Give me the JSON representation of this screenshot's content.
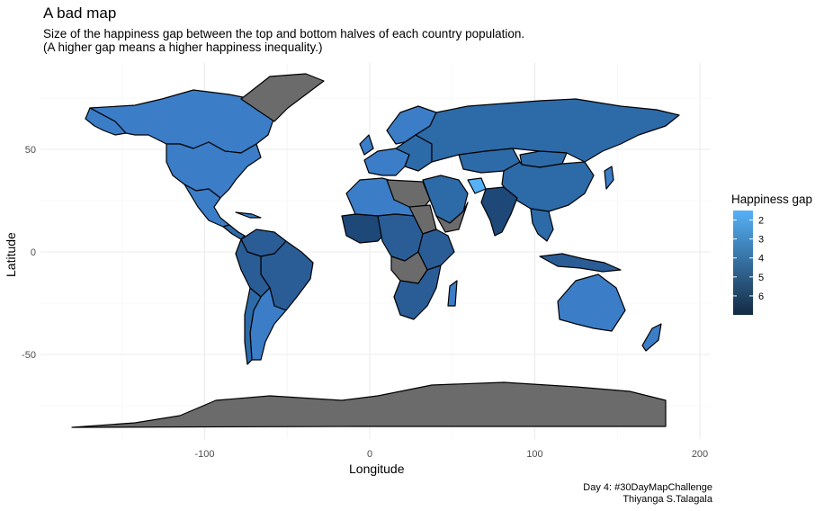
{
  "title": "A bad map",
  "subtitle": {
    "line1": "Size of the happiness gap between the top and bottom halves of each country population.",
    "line2": "(A higher gap means a higher happiness inequality.)"
  },
  "caption": {
    "line1": "Day 4: #30DayMapChallenge",
    "line2": "Thiyanga S.Talagala"
  },
  "chart_data": {
    "type": "choropleth map",
    "xlabel": "Longitude",
    "ylabel": "Latitude",
    "x_ticks": [
      -100,
      0,
      100,
      200
    ],
    "y_ticks": [
      50,
      0,
      -50
    ],
    "x_tick_labels": [
      "-100",
      "0",
      "100",
      "200"
    ],
    "y_tick_labels": [
      "50",
      "0",
      "-50"
    ],
    "xlim": [
      -200,
      210
    ],
    "ylim": [
      -90,
      90
    ],
    "grid": true,
    "legend": {
      "title": "Happiness gap",
      "position": "right",
      "ticks": [
        "2",
        "3",
        "4",
        "5",
        "6"
      ],
      "tick_values": [
        2,
        3,
        4,
        5,
        6
      ],
      "range": [
        1.5,
        7.0
      ],
      "color_low": "#56B1F7",
      "color_high": "#132B43"
    },
    "missing_color": "#6b6b6b"
  }
}
